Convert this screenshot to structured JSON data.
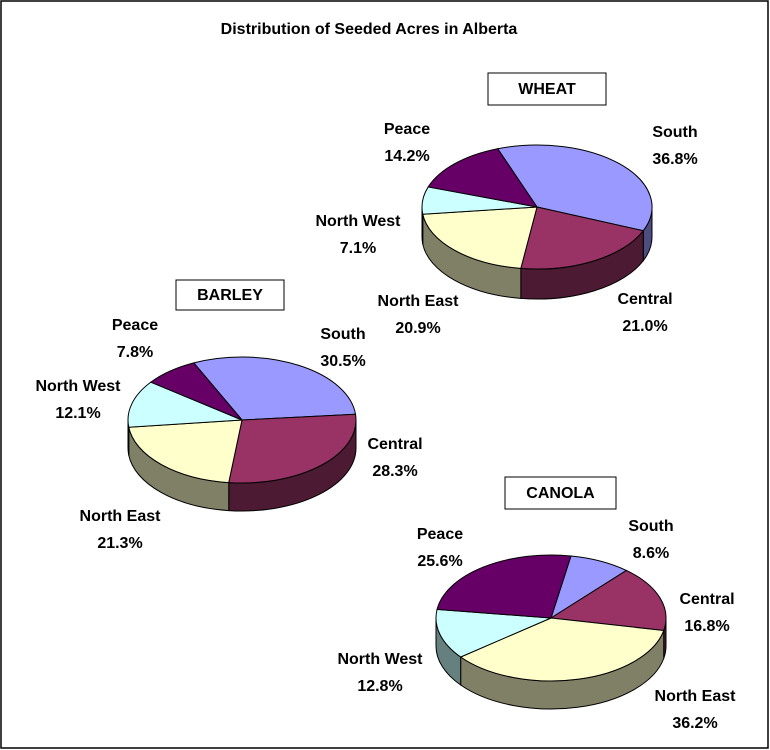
{
  "title": "Distribution of Seeded Acres in Alberta",
  "chart_data": [
    {
      "type": "pie",
      "title": "WHEAT",
      "categories": [
        "South",
        "Central",
        "North East",
        "North West",
        "Peace"
      ],
      "values": [
        36.8,
        21.0,
        20.9,
        7.1,
        14.2
      ],
      "value_labels": [
        "36.8%",
        "21.0%",
        "20.9%",
        "7.1%",
        "14.2%"
      ],
      "colors": [
        "#9999ff",
        "#993366",
        "#ffffcc",
        "#ccffff",
        "#660066"
      ]
    },
    {
      "type": "pie",
      "title": "BARLEY",
      "categories": [
        "South",
        "Central",
        "North East",
        "North West",
        "Peace"
      ],
      "values": [
        30.5,
        28.3,
        21.3,
        12.1,
        7.8
      ],
      "value_labels": [
        "30.5%",
        "28.3%",
        "21.3%",
        "12.1%",
        "7.8%"
      ],
      "colors": [
        "#9999ff",
        "#993366",
        "#ffffcc",
        "#ccffff",
        "#660066"
      ]
    },
    {
      "type": "pie",
      "title": "CANOLA",
      "categories": [
        "South",
        "Central",
        "North East",
        "North West",
        "Peace"
      ],
      "values": [
        8.6,
        16.8,
        36.2,
        12.8,
        25.6
      ],
      "value_labels": [
        "8.6%",
        "16.8%",
        "36.2%",
        "12.8%",
        "25.6%"
      ],
      "colors": [
        "#9999ff",
        "#993366",
        "#ffffcc",
        "#ccffff",
        "#660066"
      ]
    }
  ]
}
